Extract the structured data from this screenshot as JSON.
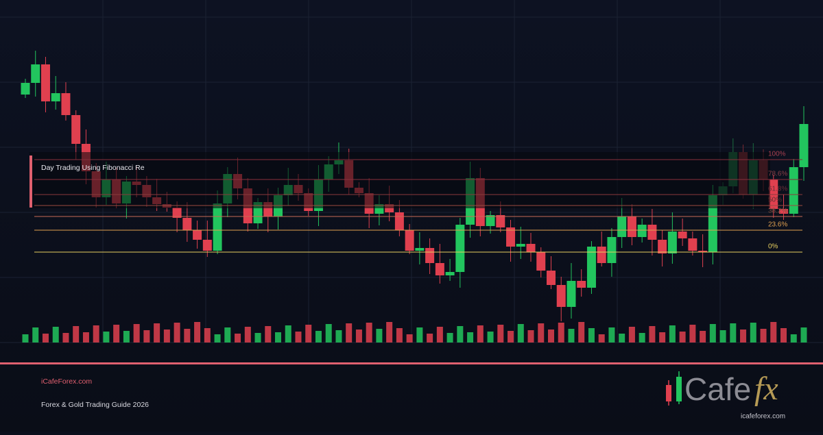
{
  "header": {
    "title": "Day Trading Using Fibonacci Re"
  },
  "fibonacci": {
    "levels": [
      "100%",
      "78.6%",
      "61.8%",
      "50%",
      "38.2%",
      "23.6%",
      "0%"
    ]
  },
  "footer": {
    "site": "iCafeForex.com",
    "subtitle": "Forex & Gold Trading Guide 2026"
  },
  "logo": {
    "word": "Cafe",
    "accent": "fx",
    "url": "icafeforex.com"
  }
}
